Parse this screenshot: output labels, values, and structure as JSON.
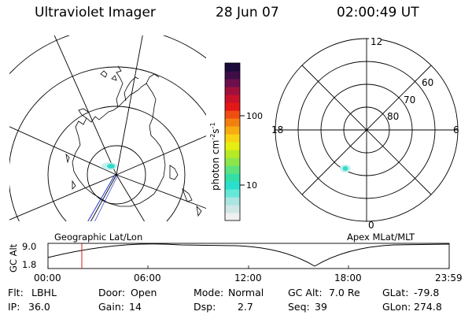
{
  "header": {
    "title": "Ultraviolet Imager",
    "date": "28 Jun 07",
    "time": "02:00:49 UT"
  },
  "left_map": {
    "caption": "Geographic Lat/Lon"
  },
  "right_map": {
    "caption": "Apex MLat/MLT",
    "mlt_labels": {
      "top": "12",
      "left": "18",
      "right": "6",
      "bottom": "0"
    },
    "lat_labels": [
      "60",
      "70",
      "80"
    ]
  },
  "colorbar": {
    "label": "photon cm",
    "exp1": "-2",
    "unit2": "s",
    "exp2": "-1",
    "ticks": [
      "100",
      "10"
    ],
    "colors": [
      "#f0f0f0",
      "#cfe7e7",
      "#a9e5e1",
      "#66e8d8",
      "#2adfcd",
      "#34dfa7",
      "#5ee27c",
      "#8ce54a",
      "#b6ea24",
      "#e6ee12",
      "#f8d314",
      "#f6ab10",
      "#f2800f",
      "#ef4d12",
      "#e31717",
      "#c8122a",
      "#a1103c",
      "#6e0f4d",
      "#3e0d47",
      "#1a0b3a"
    ]
  },
  "timeline": {
    "ylabel": "GC Alt",
    "y_ticks": [
      "9.0",
      "1.8"
    ],
    "x_ticks": [
      "00:00",
      "06:00",
      "12:00",
      "18:00",
      "23:59"
    ]
  },
  "info": {
    "filter": {
      "label": "Flt:",
      "value": "LBHL"
    },
    "ip": {
      "label": "IP:",
      "value": "36.0"
    },
    "door": {
      "label": "Door:",
      "value": "Open"
    },
    "gain": {
      "label": "Gain:",
      "value": "14"
    },
    "mode": {
      "label": "Mode:",
      "value": "Normal"
    },
    "dsp": {
      "label": "Dsp:",
      "value": "2.7"
    },
    "gc_alt": {
      "label": "GC Alt:",
      "value": "7.0 Re"
    },
    "seq": {
      "label": "Seq:",
      "value": "39"
    },
    "glat": {
      "label": "GLat:",
      "value": "-79.8"
    },
    "glon": {
      "label": "GLon:",
      "value": "274.8"
    }
  }
}
